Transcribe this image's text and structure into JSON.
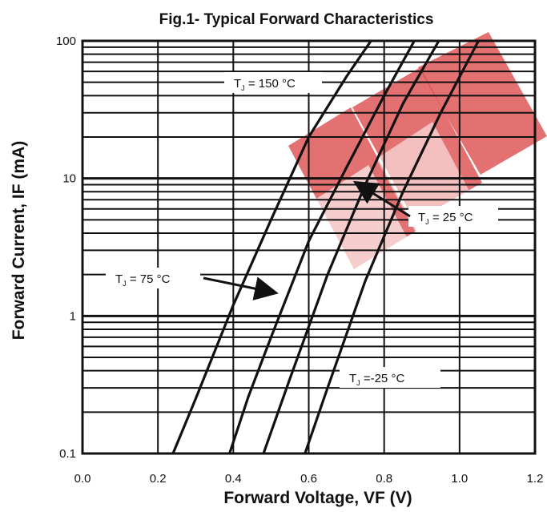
{
  "chart_data": {
    "type": "line",
    "title": "Fig.1- Typical Forward Characteristics",
    "xlabel": {
      "main": "Forward Voltage, V",
      "sub": "F",
      "unit": " (V)"
    },
    "ylabel": {
      "main": "Forward Current, I",
      "sub": "F",
      "unit": " (mA)"
    },
    "xlim": [
      0.0,
      1.2
    ],
    "ylim": [
      0.1,
      100
    ],
    "yscale": "log",
    "grid": true,
    "x_ticks": [
      0.0,
      0.2,
      0.4,
      0.6,
      0.8,
      1.0,
      1.2
    ],
    "x_tick_labels": [
      "0.0",
      "0.2",
      "0.4",
      "0.6",
      "0.8",
      "1.0",
      "1.2"
    ],
    "y_ticks": [
      0.1,
      1,
      10,
      100
    ],
    "y_tick_labels": [
      "0.1",
      "1",
      "10",
      "100"
    ],
    "series": [
      {
        "name": "T_J = 150 °C",
        "x": [
          0.24,
          0.3,
          0.4,
          0.5,
          0.6,
          0.7,
          0.765
        ],
        "y": [
          0.1,
          0.25,
          1.2,
          5.0,
          20,
          55,
          100
        ]
      },
      {
        "name": "T_J = 75 °C",
        "x": [
          0.39,
          0.44,
          0.5,
          0.6,
          0.7,
          0.8,
          0.88
        ],
        "y": [
          0.1,
          0.26,
          0.7,
          3.5,
          12,
          40,
          100
        ]
      },
      {
        "name": "T_J = 25 °C",
        "x": [
          0.48,
          0.55,
          0.65,
          0.75,
          0.85,
          0.945
        ],
        "y": [
          0.1,
          0.35,
          2.0,
          9.0,
          35,
          100
        ]
      },
      {
        "name": "T_J = -25 °C",
        "x": [
          0.59,
          0.65,
          0.75,
          0.85,
          0.95,
          1.05
        ],
        "y": [
          0.1,
          0.3,
          1.8,
          8.0,
          30,
          100
        ]
      }
    ],
    "annotations": [
      {
        "id": "t150",
        "prefix": "T",
        "sub": "J",
        "suffix": " = 150 °C"
      },
      {
        "id": "t75",
        "prefix": "T",
        "sub": "J",
        "suffix": " = 75 °C"
      },
      {
        "id": "t25",
        "prefix": "T",
        "sub": "J",
        "suffix": " = 25 °C"
      },
      {
        "id": "tm25",
        "prefix": "T",
        "sub": "J",
        "suffix": " =-25 °C"
      }
    ],
    "colors": {
      "line": "#111111",
      "grid": "#111111",
      "watermark": "#d93a3a"
    }
  }
}
